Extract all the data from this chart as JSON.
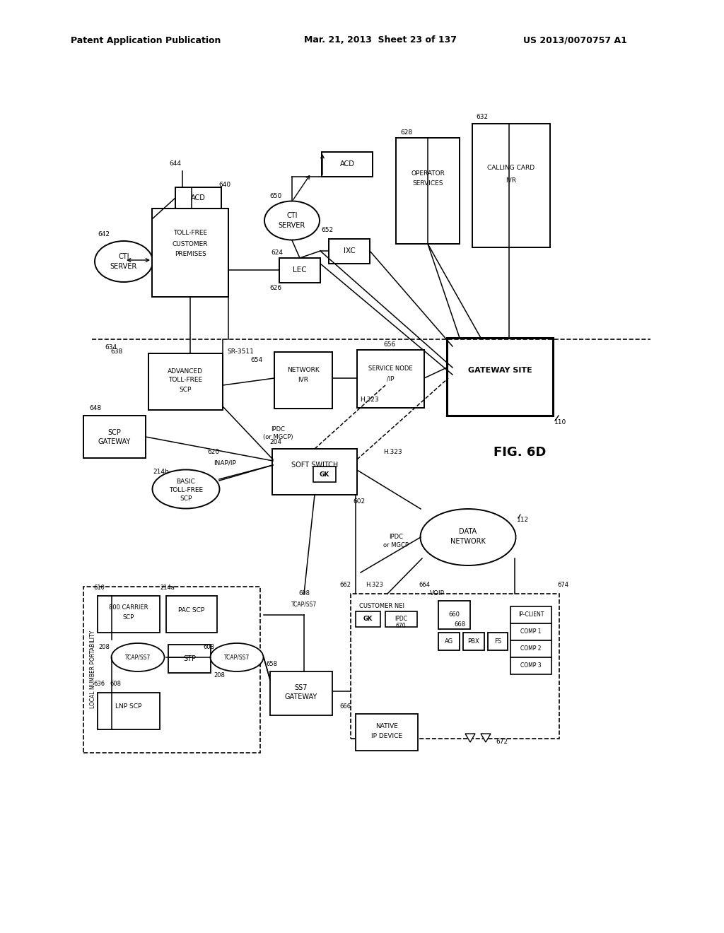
{
  "bg_color": "#ffffff",
  "header_left": "Patent Application Publication",
  "header_mid": "Mar. 21, 2013  Sheet 23 of 137",
  "header_right": "US 2013/0070757 A1",
  "fig_label": "FIG. 6D"
}
